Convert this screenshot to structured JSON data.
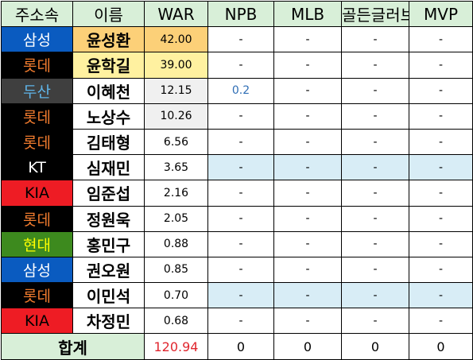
{
  "header": {
    "team": "주소속",
    "name": "이름",
    "war": "WAR",
    "npb": "NPB",
    "mlb": "MLB",
    "goldglove": "골든글러브",
    "mvp": "MVP"
  },
  "rows": [
    {
      "team": "삼성",
      "team_bg": "#0a5bc0",
      "team_fg": "#ffffff",
      "name": "윤성환",
      "name_bg": "#fcd078",
      "war": "42.00",
      "war_bg": "#fcd078",
      "npb": "-",
      "mlb": "-",
      "goldglove": "-",
      "mvp": "-",
      "highlight": false
    },
    {
      "team": "롯데",
      "team_bg": "#000000",
      "team_fg": "#f07b2e",
      "name": "윤학길",
      "name_bg": "#fff1a0",
      "war": "39.00",
      "war_bg": "#fff1a0",
      "npb": "-",
      "mlb": "-",
      "goldglove": "-",
      "mvp": "-",
      "highlight": false
    },
    {
      "team": "두산",
      "team_bg": "#3f3f3f",
      "team_fg": "#5fb4e8",
      "name": "이혜천",
      "name_bg": "#ffffff",
      "war": "12.15",
      "war_bg": "#f0f0f0",
      "npb": "0.2",
      "mlb": "-",
      "goldglove": "-",
      "mvp": "-",
      "highlight": false
    },
    {
      "team": "롯데",
      "team_bg": "#000000",
      "team_fg": "#f07b2e",
      "name": "노상수",
      "name_bg": "#ffffff",
      "war": "10.26",
      "war_bg": "#f0f0f0",
      "npb": "-",
      "mlb": "-",
      "goldglove": "-",
      "mvp": "-",
      "highlight": false
    },
    {
      "team": "롯데",
      "team_bg": "#000000",
      "team_fg": "#f07b2e",
      "name": "김태형",
      "name_bg": "#ffffff",
      "war": "6.56",
      "war_bg": "#ffffff",
      "npb": "-",
      "mlb": "-",
      "goldglove": "-",
      "mvp": "-",
      "highlight": false
    },
    {
      "team": "KT",
      "team_bg": "#000000",
      "team_fg": "#ffffff",
      "name": "심재민",
      "name_bg": "#ffffff",
      "war": "3.65",
      "war_bg": "#ffffff",
      "npb": "-",
      "mlb": "-",
      "goldglove": "-",
      "mvp": "-",
      "highlight": true
    },
    {
      "team": "KIA",
      "team_bg": "#ee1c24",
      "team_fg": "#000000",
      "name": "임준섭",
      "name_bg": "#ffffff",
      "war": "2.16",
      "war_bg": "#ffffff",
      "npb": "-",
      "mlb": "-",
      "goldglove": "-",
      "mvp": "-",
      "highlight": false
    },
    {
      "team": "롯데",
      "team_bg": "#000000",
      "team_fg": "#f07b2e",
      "name": "정원욱",
      "name_bg": "#ffffff",
      "war": "2.05",
      "war_bg": "#ffffff",
      "npb": "-",
      "mlb": "-",
      "goldglove": "-",
      "mvp": "-",
      "highlight": false
    },
    {
      "team": "현대",
      "team_bg": "#3d8a1e",
      "team_fg": "#ffff00",
      "name": "홍민구",
      "name_bg": "#ffffff",
      "war": "0.88",
      "war_bg": "#ffffff",
      "npb": "-",
      "mlb": "-",
      "goldglove": "-",
      "mvp": "-",
      "highlight": false
    },
    {
      "team": "삼성",
      "team_bg": "#0a5bc0",
      "team_fg": "#ffffff",
      "name": "권오원",
      "name_bg": "#ffffff",
      "war": "0.85",
      "war_bg": "#ffffff",
      "npb": "-",
      "mlb": "-",
      "goldglove": "-",
      "mvp": "-",
      "highlight": false
    },
    {
      "team": "롯데",
      "team_bg": "#000000",
      "team_fg": "#f07b2e",
      "name": "이민석",
      "name_bg": "#ffffff",
      "war": "0.70",
      "war_bg": "#ffffff",
      "npb": "-",
      "mlb": "-",
      "goldglove": "-",
      "mvp": "-",
      "highlight": true
    },
    {
      "team": "KIA",
      "team_bg": "#ee1c24",
      "team_fg": "#000000",
      "name": "차정민",
      "name_bg": "#ffffff",
      "war": "0.68",
      "war_bg": "#ffffff",
      "npb": "-",
      "mlb": "-",
      "goldglove": "-",
      "mvp": "-",
      "highlight": false
    }
  ],
  "total": {
    "label": "합계",
    "war": "120.94",
    "npb": "0",
    "mlb": "0",
    "goldglove": "0",
    "mvp": "0"
  }
}
